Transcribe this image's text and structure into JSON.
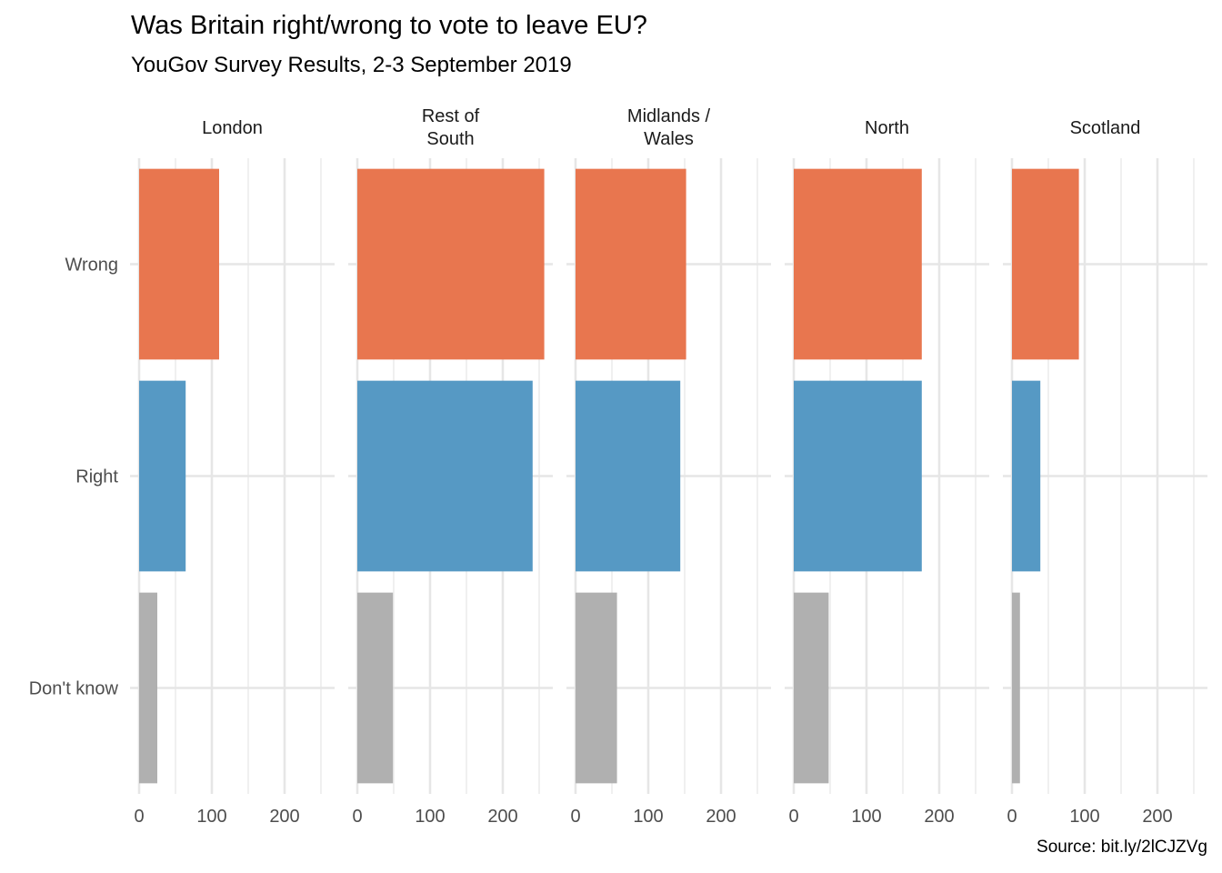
{
  "title": "Was Britain right/wrong to vote to leave EU?",
  "subtitle": "YouGov Survey Results, 2-3 September 2019",
  "caption": "Source: bit.ly/2lCJZVg",
  "chart_data": {
    "type": "bar",
    "orientation": "horizontal",
    "title": "Was Britain right/wrong to vote to leave EU?",
    "subtitle": "YouGov Survey Results, 2-3 September 2019",
    "xlabel": "",
    "ylabel": "",
    "categories": [
      "Wrong",
      "Right",
      "Don't know"
    ],
    "category_colors": {
      "Wrong": "#E8764F",
      "Right": "#5699C4",
      "Don't know": "#B0B0B0"
    },
    "xlim": [
      0,
      270
    ],
    "x_ticks": [
      0,
      100,
      200
    ],
    "x_minor_ticks": [
      50,
      150,
      250
    ],
    "grid": true,
    "legend": "none",
    "facets": [
      {
        "name": "London",
        "label_lines": [
          "London"
        ],
        "values": [
          110,
          64,
          25
        ]
      },
      {
        "name": "Rest of South",
        "label_lines": [
          "Rest of",
          "South"
        ],
        "values": [
          257,
          241,
          49
        ]
      },
      {
        "name": "Midlands / Wales",
        "label_lines": [
          "Midlands /",
          "Wales"
        ],
        "values": [
          152,
          144,
          57
        ]
      },
      {
        "name": "North",
        "label_lines": [
          "North"
        ],
        "values": [
          176,
          176,
          48
        ]
      },
      {
        "name": "Scotland",
        "label_lines": [
          "Scotland"
        ],
        "values": [
          92,
          39,
          11
        ]
      }
    ]
  }
}
